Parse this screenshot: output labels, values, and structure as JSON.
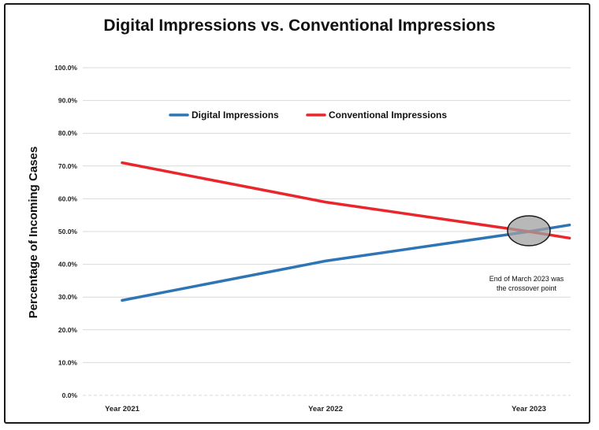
{
  "chart_data": {
    "type": "line",
    "title": "Digital Impressions vs. Conventional Impressions",
    "ylabel": "Percentage of Incoming Cases",
    "xlabel": "",
    "categories": [
      "Year 2021",
      "Year 2022",
      "Year 2023"
    ],
    "yticks": [
      "0.0%",
      "10.0%",
      "20.0%",
      "30.0%",
      "40.0%",
      "50.0%",
      "60.0%",
      "70.0%",
      "80.0%",
      "90.0%",
      "100.0%"
    ],
    "ylim": [
      0,
      100
    ],
    "grid": true,
    "legend_position": "top-center",
    "series": [
      {
        "name": "Digital Impressions",
        "color": "#2e75b6",
        "points": [
          {
            "x": 0,
            "y": 29
          },
          {
            "x": 1,
            "y": 41
          },
          {
            "x": 2,
            "y": 50
          },
          {
            "x": 2.2,
            "y": 52
          }
        ]
      },
      {
        "name": "Conventional Impressions",
        "color": "#e8262b",
        "points": [
          {
            "x": 0,
            "y": 71
          },
          {
            "x": 1,
            "y": 59
          },
          {
            "x": 2,
            "y": 50
          },
          {
            "x": 2.2,
            "y": 48
          }
        ]
      }
    ],
    "annotation": {
      "line1": "End of March 2023 was",
      "line2": "the crossover point",
      "at": {
        "x": 2,
        "y": 50
      },
      "marker_color": "#a0a0a0"
    }
  }
}
